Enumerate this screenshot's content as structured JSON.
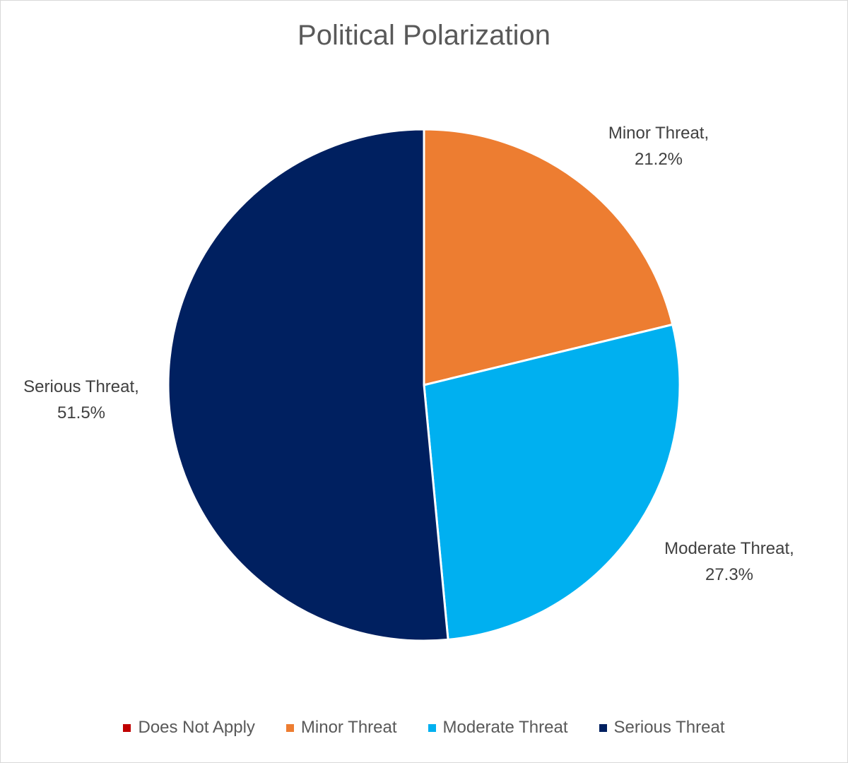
{
  "chart_data": {
    "type": "pie",
    "title": "Political Polarization",
    "categories": [
      "Does Not Apply",
      "Minor Threat",
      "Moderate Threat",
      "Serious Threat"
    ],
    "values": [
      0,
      21.2,
      27.3,
      51.5
    ],
    "value_labels": [
      "",
      "21.2%",
      "27.3%",
      "51.5%"
    ],
    "colors": [
      "#c00000",
      "#ed7d31",
      "#00b0f0",
      "#002060"
    ],
    "start_angle_deg": 0,
    "direction": "clockwise",
    "legend_position": "bottom",
    "data_labels": [
      null,
      {
        "category": "Minor Threat,",
        "value": "21.2%"
      },
      {
        "category": "Moderate Threat,",
        "value": "27.3%"
      },
      {
        "category": "Serious Threat,",
        "value": "51.5%"
      }
    ]
  }
}
